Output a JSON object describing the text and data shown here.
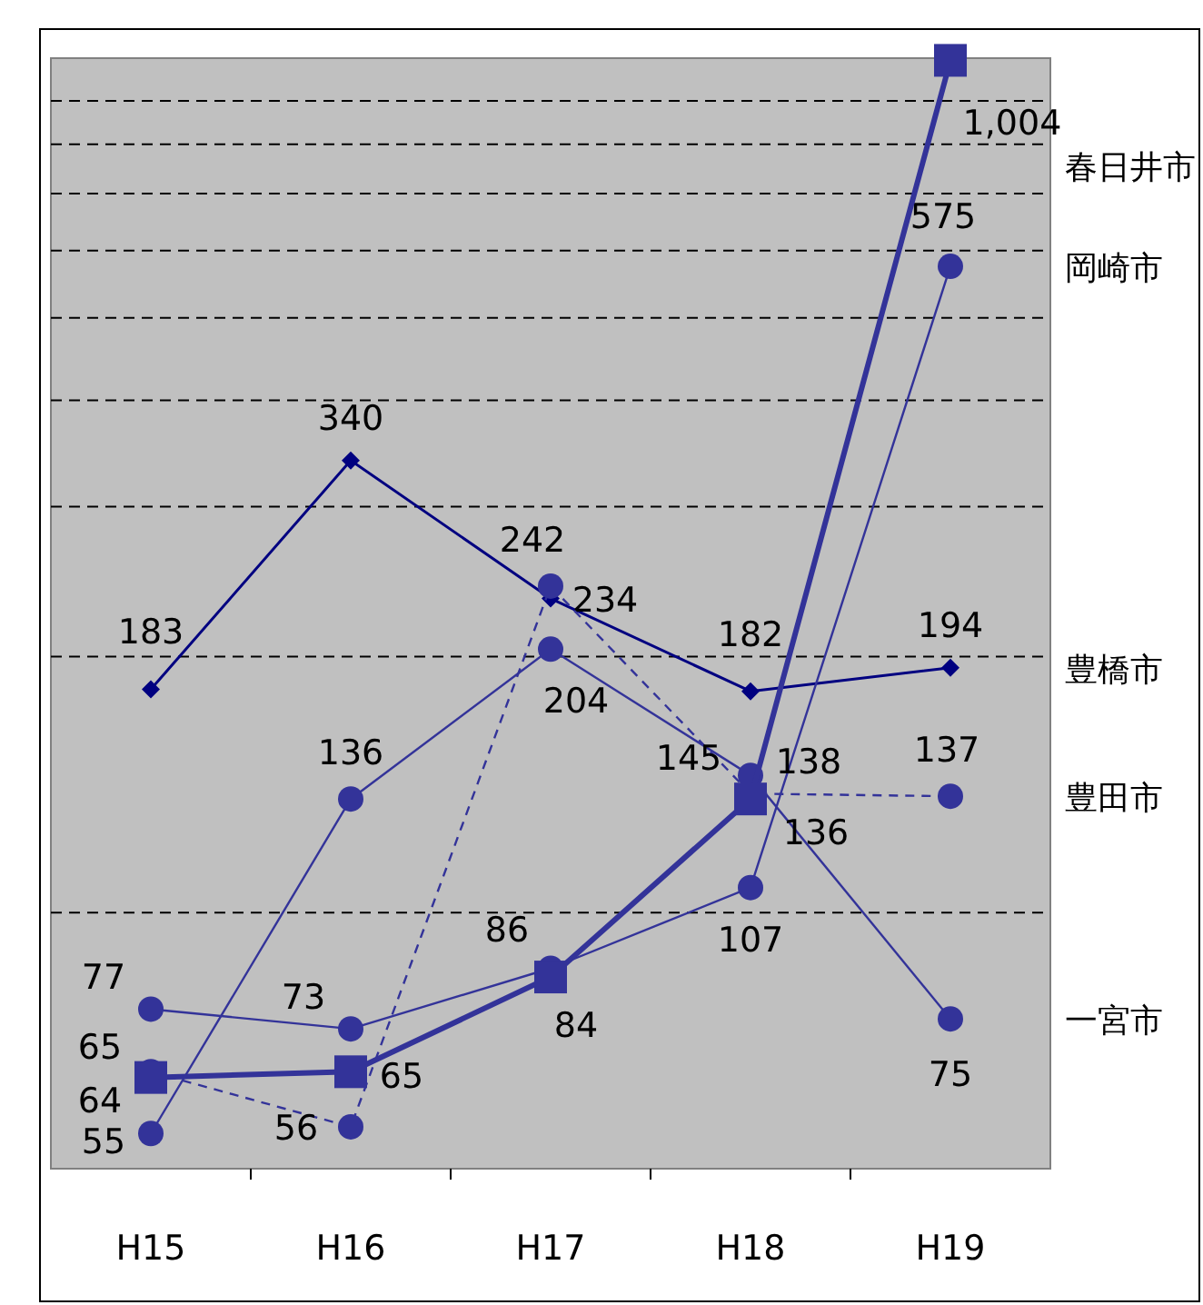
{
  "chart_data": {
    "type": "line",
    "categories": [
      "H15",
      "H16",
      "H17",
      "H18",
      "H19"
    ],
    "series": [
      {
        "name": "豊橋市",
        "color": "#000080",
        "marker": "diamond",
        "line_style": "solid",
        "values": [
          183,
          340,
          234,
          182,
          194
        ]
      },
      {
        "name": "岡崎市",
        "color": "#333399",
        "marker": "circle",
        "line_style": "solid",
        "values": [
          77,
          73,
          86,
          107,
          575
        ]
      },
      {
        "name": "豊田市",
        "color": "#333399",
        "marker": "circle",
        "line_style": "dashed",
        "values": [
          65,
          56,
          242,
          138,
          137
        ]
      },
      {
        "name": "一宮市",
        "color": "#333399",
        "marker": "circle",
        "line_style": "solid",
        "values": [
          55,
          136,
          204,
          145,
          75
        ]
      },
      {
        "name": "春日井市",
        "color": "#333399",
        "marker": "square",
        "line_style": "solid",
        "values": [
          64,
          65,
          84,
          136,
          1004
        ],
        "value_labels": [
          "64",
          "65",
          "84",
          "136",
          "1,004"
        ]
      }
    ],
    "log": true,
    "ylim": [
      50,
      1010
    ],
    "yticks": [
      {
        "value": 100,
        "label": null
      },
      {
        "value": 200,
        "label": null
      },
      {
        "value": 300,
        "label": null
      },
      {
        "value": 400,
        "label": null
      },
      {
        "value": 500,
        "label": null
      },
      {
        "value": 600,
        "label": null
      },
      {
        "value": 700,
        "label": null
      },
      {
        "value": 800,
        "label": null
      },
      {
        "value": 900,
        "label": null
      }
    ],
    "grid": "y",
    "legend": false,
    "data_labels": true,
    "tick_labels": "x"
  }
}
